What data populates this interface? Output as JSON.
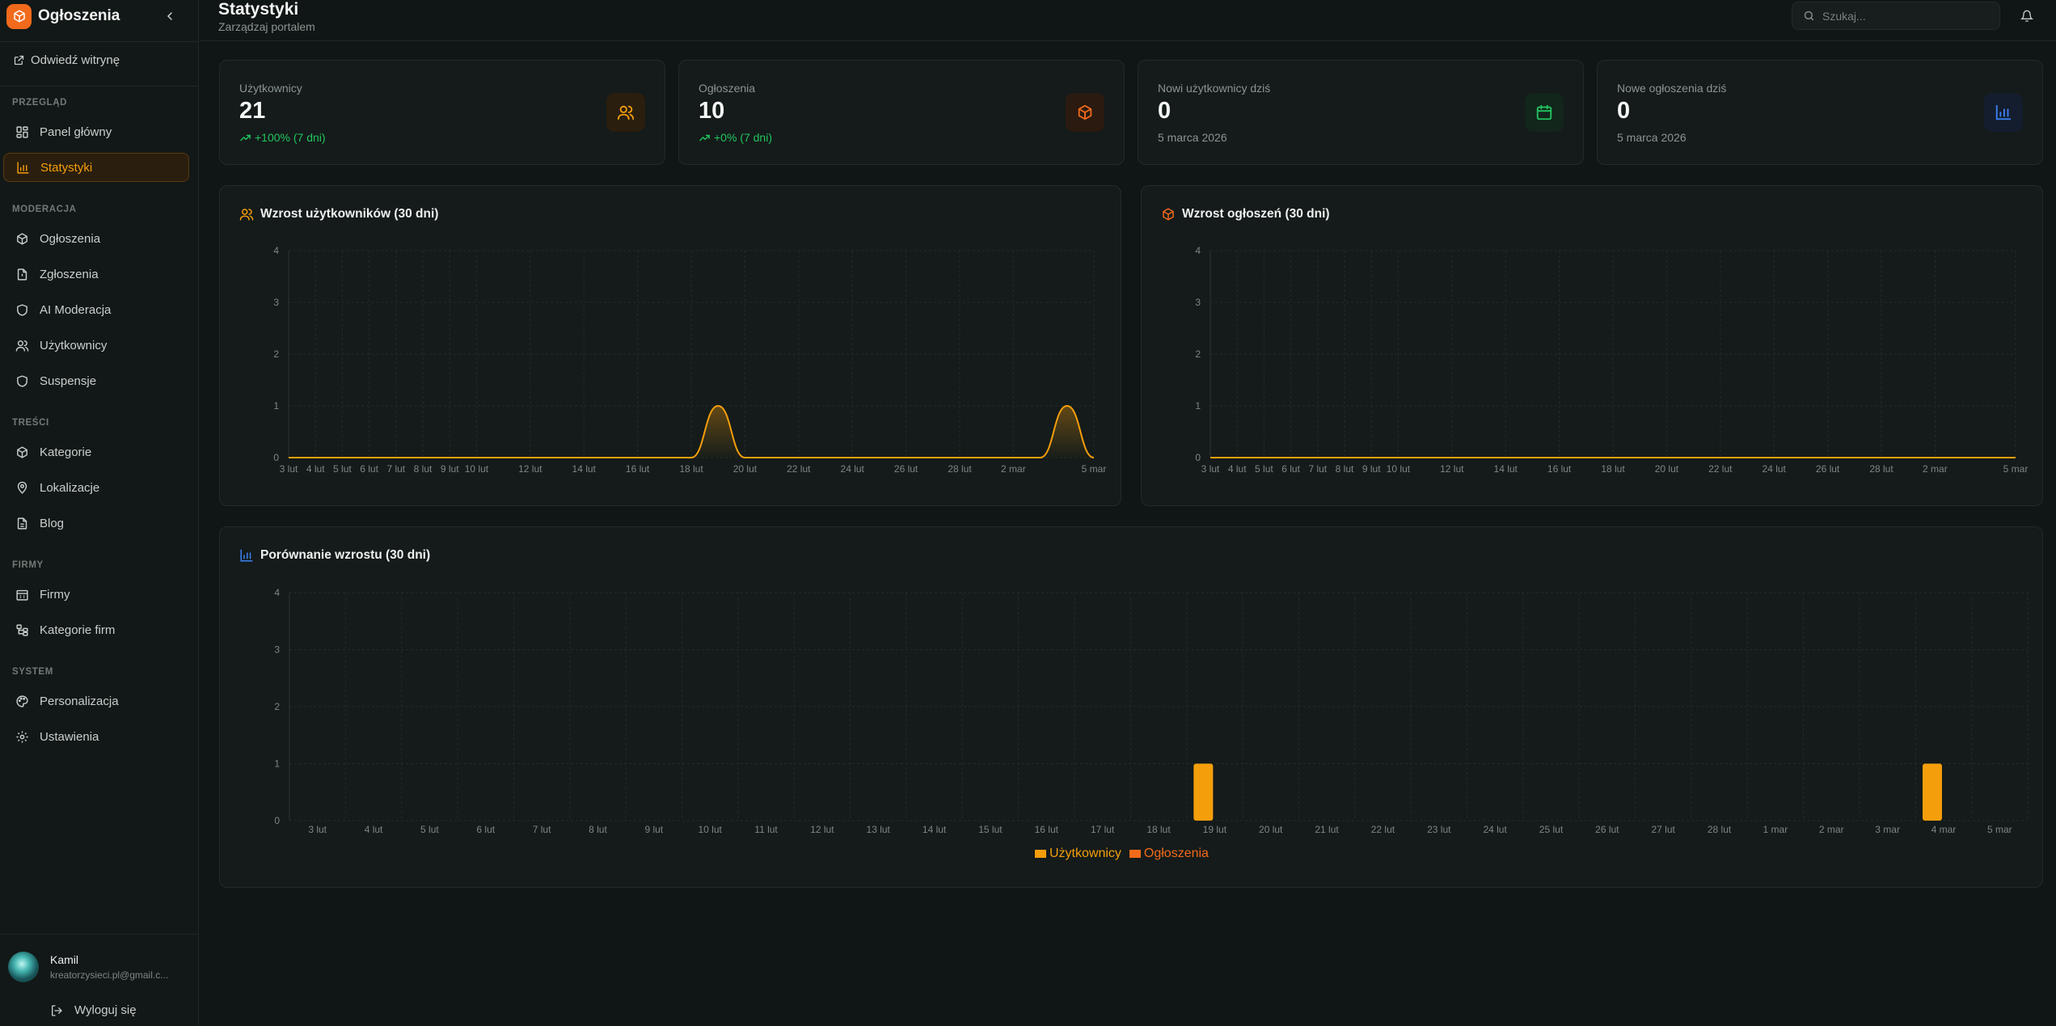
{
  "app": {
    "name": "Ogłoszenia"
  },
  "sidebar": {
    "visit_site": "Odwiedź witrynę",
    "sections": {
      "przeglad": "PRZEGLĄD",
      "moderacja": "MODERACJA",
      "tresci": "TREŚCI",
      "firmy": "FIRMY",
      "system": "SYSTEM"
    },
    "items": {
      "panel": "Panel główny",
      "statystyki": "Statystyki",
      "ogloszenia": "Ogłoszenia",
      "zgloszenia": "Zgłoszenia",
      "ai_moderacja": "AI Moderacja",
      "uzytkownicy": "Użytkownicy",
      "suspensje": "Suspensje",
      "kategorie": "Kategorie",
      "lokalizacje": "Lokalizacje",
      "blog": "Blog",
      "firmy": "Firmy",
      "kategorie_firm": "Kategorie firm",
      "personalizacja": "Personalizacja",
      "ustawienia": "Ustawienia"
    },
    "user": {
      "name": "Kamil",
      "email": "kreatorzysieci.pl@gmail.c..."
    },
    "logout": "Wyloguj się"
  },
  "header": {
    "title": "Statystyki",
    "subtitle": "Zarządzaj portalem",
    "search_placeholder": "Szukaj..."
  },
  "stats": [
    {
      "label": "Użytkownicy",
      "value": "21",
      "sub": "+100% (7 dni)",
      "trend": true,
      "icon": "users-icon"
    },
    {
      "label": "Ogłoszenia",
      "value": "10",
      "sub": "+0% (7 dni)",
      "trend": true,
      "icon": "package-icon"
    },
    {
      "label": "Nowi użytkownicy dziś",
      "value": "0",
      "sub": "5 marca 2026",
      "trend": false,
      "icon": "calendar-icon"
    },
    {
      "label": "Nowe ogłoszenia dziś",
      "value": "0",
      "sub": "5 marca 2026",
      "trend": false,
      "icon": "bar-chart-icon"
    }
  ],
  "colors": {
    "accent": "#f59e0b",
    "orange": "#f26a1b",
    "green": "#22c55e",
    "blue": "#3b82f6"
  },
  "chart_titles": {
    "users": "Wzrost użytkowników (30 dni)",
    "ads": "Wzrost ogłoszeń (30 dni)",
    "compare": "Porównanie wzrostu (30 dni)"
  },
  "chart_data": [
    {
      "type": "area",
      "title": "Wzrost użytkowników (30 dni)",
      "ylim": [
        0,
        4
      ],
      "yticks": [
        0,
        1,
        2,
        3,
        4
      ],
      "x": [
        "3 lut",
        "4 lut",
        "5 lut",
        "6 lut",
        "7 lut",
        "8 lut",
        "9 lut",
        "10 lut",
        "11 lut",
        "12 lut",
        "13 lut",
        "14 lut",
        "15 lut",
        "16 lut",
        "17 lut",
        "18 lut",
        "19 lut",
        "20 lut",
        "21 lut",
        "22 lut",
        "23 lut",
        "24 lut",
        "25 lut",
        "26 lut",
        "27 lut",
        "28 lut",
        "1 mar",
        "2 mar",
        "3 mar",
        "4 mar",
        "5 mar"
      ],
      "xtick_labels": [
        "3 lut",
        "4 lut",
        "5 lut",
        "6 lut",
        "7 lut",
        "8 lut",
        "9 lut",
        "10 lut",
        "12 lut",
        "14 lut",
        "16 lut",
        "18 lut",
        "20 lut",
        "22 lut",
        "24 lut",
        "26 lut",
        "28 lut",
        "2 mar",
        "5 mar"
      ],
      "series": [
        {
          "values": [
            0,
            0,
            0,
            0,
            0,
            0,
            0,
            0,
            0,
            0,
            0,
            0,
            0,
            0,
            0,
            0,
            1,
            0,
            0,
            0,
            0,
            0,
            0,
            0,
            0,
            0,
            0,
            0,
            0,
            1,
            0
          ]
        }
      ]
    },
    {
      "type": "area",
      "title": "Wzrost ogłoszeń (30 dni)",
      "ylim": [
        0,
        4
      ],
      "yticks": [
        0,
        1,
        2,
        3,
        4
      ],
      "x": [
        "3 lut",
        "4 lut",
        "5 lut",
        "6 lut",
        "7 lut",
        "8 lut",
        "9 lut",
        "10 lut",
        "11 lut",
        "12 lut",
        "13 lut",
        "14 lut",
        "15 lut",
        "16 lut",
        "17 lut",
        "18 lut",
        "19 lut",
        "20 lut",
        "21 lut",
        "22 lut",
        "23 lut",
        "24 lut",
        "25 lut",
        "26 lut",
        "27 lut",
        "28 lut",
        "1 mar",
        "2 mar",
        "3 mar",
        "4 mar",
        "5 mar"
      ],
      "xtick_labels": [
        "3 lut",
        "4 lut",
        "5 lut",
        "6 lut",
        "7 lut",
        "8 lut",
        "9 lut",
        "10 lut",
        "12 lut",
        "14 lut",
        "16 lut",
        "18 lut",
        "20 lut",
        "22 lut",
        "24 lut",
        "26 lut",
        "28 lut",
        "2 mar",
        "5 mar"
      ],
      "series": [
        {
          "values": [
            0,
            0,
            0,
            0,
            0,
            0,
            0,
            0,
            0,
            0,
            0,
            0,
            0,
            0,
            0,
            0,
            0,
            0,
            0,
            0,
            0,
            0,
            0,
            0,
            0,
            0,
            0,
            0,
            0,
            0,
            0
          ]
        }
      ]
    },
    {
      "type": "bar",
      "title": "Porównanie wzrostu (30 dni)",
      "ylim": [
        0,
        4
      ],
      "yticks": [
        0,
        1,
        2,
        3,
        4
      ],
      "categories": [
        "3 lut",
        "4 lut",
        "5 lut",
        "6 lut",
        "7 lut",
        "8 lut",
        "9 lut",
        "10 lut",
        "11 lut",
        "12 lut",
        "13 lut",
        "14 lut",
        "15 lut",
        "16 lut",
        "17 lut",
        "18 lut",
        "19 lut",
        "20 lut",
        "21 lut",
        "22 lut",
        "23 lut",
        "24 lut",
        "25 lut",
        "26 lut",
        "27 lut",
        "28 lut",
        "1 mar",
        "2 mar",
        "3 mar",
        "4 mar",
        "5 mar"
      ],
      "legend": "bottom-center",
      "series": [
        {
          "name": "Użytkownicy",
          "color": "#f59e0b",
          "values": [
            0,
            0,
            0,
            0,
            0,
            0,
            0,
            0,
            0,
            0,
            0,
            0,
            0,
            0,
            0,
            0,
            1,
            0,
            0,
            0,
            0,
            0,
            0,
            0,
            0,
            0,
            0,
            0,
            0,
            1,
            0
          ]
        },
        {
          "name": "Ogłoszenia",
          "color": "#f26a1b",
          "values": [
            0,
            0,
            0,
            0,
            0,
            0,
            0,
            0,
            0,
            0,
            0,
            0,
            0,
            0,
            0,
            0,
            0,
            0,
            0,
            0,
            0,
            0,
            0,
            0,
            0,
            0,
            0,
            0,
            0,
            0,
            0
          ]
        }
      ]
    }
  ]
}
